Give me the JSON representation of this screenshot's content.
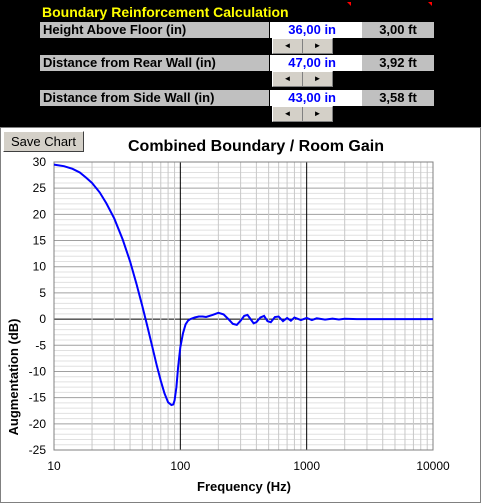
{
  "header": {
    "title": "Boundary Reinforcement Calculation",
    "rows": [
      {
        "label": "Height Above Floor (in)",
        "value": "36,00 in",
        "ft": "3,00 ft"
      },
      {
        "label": "Distance from Rear Wall (in)",
        "value": "47,00 in",
        "ft": "3,92 ft"
      },
      {
        "label": "Distance from Side Wall (in)",
        "value": "43,00 in",
        "ft": "3,58 ft"
      }
    ],
    "spinner_left": "◄",
    "spinner_right": "►"
  },
  "toolbar": {
    "save_label": "Save Chart"
  },
  "colors": {
    "title_text": "#ffff00",
    "value_text": "#0000ff",
    "curve": "#0000ff",
    "label_bg": "#c0c0c0"
  },
  "chart_data": {
    "type": "line",
    "title": "Combined Boundary / Room Gain",
    "xlabel": "Frequency (Hz)",
    "ylabel": "Augmentation (dB)",
    "xscale": "log",
    "xlim": [
      10,
      10000
    ],
    "ylim": [
      -25,
      30
    ],
    "xticks": [
      "10",
      "100",
      "1000",
      "10000"
    ],
    "yticks": [
      "30",
      "25",
      "20",
      "15",
      "10",
      "5",
      "0",
      "-5",
      "-10",
      "-15",
      "-20",
      "-25"
    ],
    "grid": true,
    "series": [
      {
        "x": [
          10,
          12,
          14,
          16,
          18,
          20,
          23,
          26,
          30,
          35,
          40,
          45,
          50,
          55,
          60,
          65,
          70,
          75,
          80,
          85,
          88,
          90,
          93,
          96,
          100,
          105,
          110,
          115,
          120,
          130,
          140,
          150,
          160,
          180,
          200,
          220,
          240,
          260,
          280,
          300,
          320,
          340,
          360,
          380,
          400,
          430,
          460,
          490,
          520,
          560,
          600,
          650,
          700,
          750,
          800,
          900,
          1000,
          1100,
          1200,
          1400,
          1600,
          1800,
          2000,
          2500,
          3000,
          4000,
          5000,
          7000,
          10000
        ],
        "y": [
          29.5,
          29.2,
          28.7,
          28.0,
          27.0,
          26.0,
          24.2,
          22.1,
          19.2,
          15.2,
          11.0,
          6.7,
          2.5,
          -1.5,
          -5.3,
          -8.8,
          -11.8,
          -14.2,
          -15.9,
          -16.4,
          -16.3,
          -15.5,
          -13.0,
          -9.2,
          -5.4,
          -2.7,
          -1.0,
          -0.3,
          0.0,
          0.3,
          0.5,
          0.5,
          0.4,
          0.8,
          1.2,
          0.9,
          0.0,
          -0.9,
          -1.1,
          -0.3,
          0.6,
          0.8,
          0.0,
          -0.8,
          -0.6,
          0.3,
          0.6,
          -0.4,
          -0.6,
          0.4,
          0.5,
          -0.4,
          0.2,
          -0.3,
          0.3,
          -0.2,
          0.2,
          -0.2,
          0.15,
          -0.1,
          0.1,
          -0.08,
          0.05,
          0.0,
          0.0,
          0.0,
          0.0,
          0.0,
          0.0
        ]
      }
    ]
  }
}
